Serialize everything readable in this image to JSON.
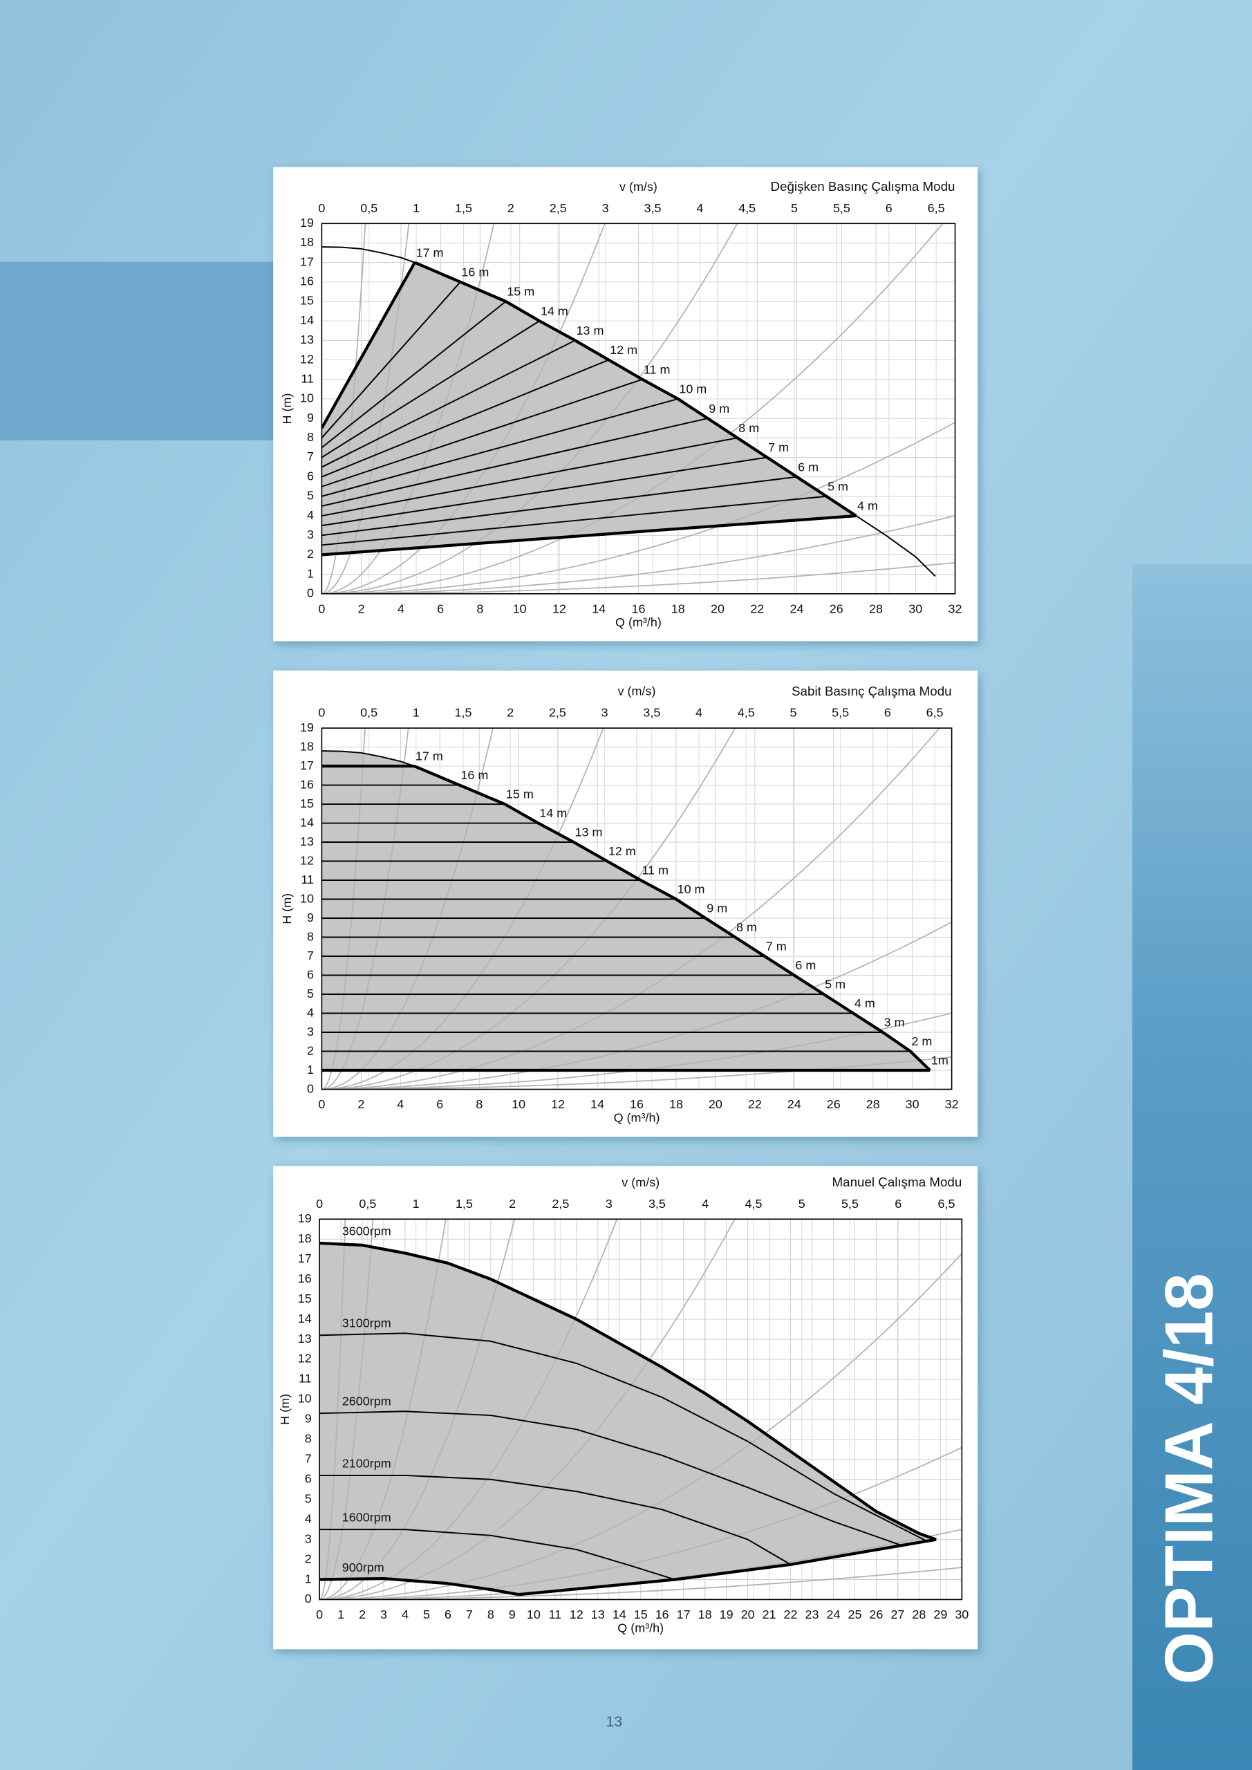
{
  "sidebar_title": "OPTIMA 4/18",
  "page_number": "13",
  "chart_data": [
    {
      "type": "line",
      "title": "Değişken Basınç Çalışma Modu",
      "x_label": "Q (m³/h)",
      "x2_label": "v (m/s)",
      "y_label": "H (m)",
      "xlim": [
        0,
        32
      ],
      "xticks": [
        0,
        2,
        4,
        6,
        8,
        10,
        12,
        14,
        16,
        18,
        20,
        22,
        24,
        26,
        28,
        30,
        32
      ],
      "x2lim": [
        0,
        6.7
      ],
      "x2ticks": [
        0,
        {
          "value": 0.5,
          "label": "0,5"
        },
        1,
        {
          "value": 1.5,
          "label": "1,5"
        },
        2,
        {
          "value": 2.5,
          "label": "2,5"
        },
        3,
        {
          "value": 3.5,
          "label": "3,5"
        },
        4,
        {
          "value": 4.5,
          "label": "4,5"
        },
        5,
        {
          "value": 5.5,
          "label": "5,5"
        },
        6,
        {
          "value": 6.5,
          "label": "6,5"
        }
      ],
      "ylim": [
        0,
        19
      ],
      "yticks": [
        0,
        1,
        2,
        3,
        4,
        5,
        6,
        7,
        8,
        9,
        10,
        11,
        12,
        13,
        14,
        15,
        16,
        17,
        18,
        19
      ],
      "grid": true,
      "series_label_position": "end",
      "system_curves": {
        "color": "#b4b4b4",
        "k": [
          3.93,
          0.981,
          0.251,
          0.0929,
          0.0431,
          0.0193,
          0.00859,
          0.00391,
          0.00156
        ]
      },
      "area": {
        "color": "#c6c6c6",
        "x": [
          0,
          4.7,
          7,
          9.3,
          11,
          12.8,
          14.5,
          16.2,
          18,
          19.5,
          21,
          22.5,
          24,
          25.5,
          27,
          0
        ],
        "y": [
          8.5,
          17,
          16,
          15,
          14,
          13,
          12,
          11,
          10,
          9,
          8,
          7,
          6,
          5,
          4,
          2
        ]
      },
      "series": [
        {
          "color": "#000000",
          "width": 1.2,
          "x": [
            0,
            1,
            2,
            3,
            4,
            4.7,
            7,
            9.3,
            11,
            12.8,
            14.5,
            16.2,
            18,
            19.5,
            21,
            22.5,
            24,
            25.5,
            27,
            28.5,
            30,
            31
          ],
          "y": [
            17.8,
            17.78,
            17.7,
            17.5,
            17.25,
            17,
            16,
            15,
            14,
            13,
            12,
            11,
            10,
            9,
            8,
            7,
            6,
            5,
            4,
            3,
            1.9,
            0.9
          ]
        },
        {
          "color": "#000000",
          "width": 2.6,
          "x": [
            4.7,
            7,
            9.3,
            11,
            12.8,
            14.5,
            16.2,
            18,
            19.5,
            21,
            22.5,
            24,
            25.5,
            27
          ],
          "y": [
            17,
            16,
            15,
            14,
            13,
            12,
            11,
            10,
            9,
            8,
            7,
            6,
            5,
            4
          ]
        },
        {
          "name": "17 m",
          "color": "#000000",
          "width": 2.6,
          "x": [
            0,
            4.7
          ],
          "y": [
            8.5,
            17
          ]
        },
        {
          "name": "16 m",
          "color": "#000000",
          "width": 1.2,
          "x": [
            0,
            7
          ],
          "y": [
            8,
            16
          ]
        },
        {
          "name": "15 m",
          "color": "#000000",
          "width": 1.2,
          "x": [
            0,
            9.3
          ],
          "y": [
            7.5,
            15
          ]
        },
        {
          "name": "14 m",
          "color": "#000000",
          "width": 1.2,
          "x": [
            0,
            11
          ],
          "y": [
            7,
            14
          ]
        },
        {
          "name": "13 m",
          "color": "#000000",
          "width": 1.2,
          "x": [
            0,
            12.8
          ],
          "y": [
            6.5,
            13
          ]
        },
        {
          "name": "12 m",
          "color": "#000000",
          "width": 1.2,
          "x": [
            0,
            14.5
          ],
          "y": [
            6,
            12
          ]
        },
        {
          "name": "11 m",
          "color": "#000000",
          "width": 1.2,
          "x": [
            0,
            16.2
          ],
          "y": [
            5.5,
            11
          ]
        },
        {
          "name": "10 m",
          "color": "#000000",
          "width": 1.2,
          "x": [
            0,
            18
          ],
          "y": [
            5,
            10
          ]
        },
        {
          "name": "9 m",
          "color": "#000000",
          "width": 1.2,
          "x": [
            0,
            19.5
          ],
          "y": [
            4.5,
            9
          ]
        },
        {
          "name": "8 m",
          "color": "#000000",
          "width": 1.2,
          "x": [
            0,
            21
          ],
          "y": [
            4,
            8
          ]
        },
        {
          "name": "7 m",
          "color": "#000000",
          "width": 1.2,
          "x": [
            0,
            22.5
          ],
          "y": [
            3.5,
            7
          ]
        },
        {
          "name": "6 m",
          "color": "#000000",
          "width": 1.2,
          "x": [
            0,
            24
          ],
          "y": [
            3,
            6
          ]
        },
        {
          "name": "5 m",
          "color": "#000000",
          "width": 1.2,
          "x": [
            0,
            25.5
          ],
          "y": [
            2.5,
            5
          ]
        },
        {
          "name": "4 m",
          "color": "#000000",
          "width": 2.6,
          "x": [
            0,
            27
          ],
          "y": [
            2,
            4
          ]
        }
      ]
    },
    {
      "type": "line",
      "title": "Sabit Basınç Çalışma Modu",
      "x_label": "Q (m³/h)",
      "x2_label": "v (m/s)",
      "y_label": "H (m)",
      "xlim": [
        0,
        32
      ],
      "xticks": [
        0,
        2,
        4,
        6,
        8,
        10,
        12,
        14,
        16,
        18,
        20,
        22,
        24,
        26,
        28,
        30,
        32
      ],
      "x2lim": [
        0,
        6.68
      ],
      "x2ticks": [
        0,
        {
          "value": 0.5,
          "label": "0,5"
        },
        1,
        {
          "value": 1.5,
          "label": "1,5"
        },
        2,
        {
          "value": 2.5,
          "label": "2,5"
        },
        3,
        {
          "value": 3.5,
          "label": "3,5"
        },
        4,
        {
          "value": 4.5,
          "label": "4,5"
        },
        5,
        {
          "value": 5.5,
          "label": "5,5"
        },
        6,
        {
          "value": 6.5,
          "label": "6,5"
        }
      ],
      "ylim": [
        0,
        19
      ],
      "yticks": [
        0,
        1,
        2,
        3,
        4,
        5,
        6,
        7,
        8,
        9,
        10,
        11,
        12,
        13,
        14,
        15,
        16,
        17,
        18,
        19
      ],
      "grid": true,
      "series_label_position": "end",
      "system_curves": {
        "color": "#b4b4b4",
        "k": [
          3.93,
          0.981,
          0.251,
          0.0929,
          0.0431,
          0.0193,
          0.00859,
          0.00391,
          0.00166
        ]
      },
      "area": {
        "color": "#c6c6c6",
        "x": [
          0,
          1,
          2,
          3,
          4,
          4.7,
          7,
          9.3,
          11,
          12.8,
          14.5,
          16.2,
          18,
          19.5,
          21,
          22.5,
          24,
          25.5,
          27,
          28.5,
          29.9,
          30.9,
          0
        ],
        "y": [
          17.8,
          17.78,
          17.7,
          17.5,
          17.25,
          17,
          16,
          15,
          14,
          13,
          12,
          11,
          10,
          9,
          8,
          7,
          6,
          5,
          4,
          3,
          2,
          1,
          1
        ]
      },
      "series": [
        {
          "color": "#000000",
          "width": 1.2,
          "x": [
            0,
            1,
            2,
            3,
            4,
            4.7
          ],
          "y": [
            17.8,
            17.78,
            17.7,
            17.5,
            17.25,
            17
          ]
        },
        {
          "color": "#000000",
          "width": 2.6,
          "x": [
            4.7,
            7,
            9.3,
            11,
            12.8,
            14.5,
            16.2,
            18,
            19.5,
            21,
            22.5,
            24,
            25.5,
            27,
            28.5,
            29.9,
            30.9
          ],
          "y": [
            17,
            16,
            15,
            14,
            13,
            12,
            11,
            10,
            9,
            8,
            7,
            6,
            5,
            4,
            3,
            2,
            1
          ]
        },
        {
          "name": "17 m",
          "color": "#000000",
          "width": 2.6,
          "x": [
            0,
            4.7
          ],
          "y": [
            17,
            17
          ]
        },
        {
          "name": "16 m",
          "color": "#000000",
          "width": 1.2,
          "x": [
            0,
            7
          ],
          "y": [
            16,
            16
          ]
        },
        {
          "name": "15 m",
          "color": "#000000",
          "width": 1.2,
          "x": [
            0,
            9.3
          ],
          "y": [
            15,
            15
          ]
        },
        {
          "name": "14 m",
          "color": "#000000",
          "width": 1.2,
          "x": [
            0,
            11
          ],
          "y": [
            14,
            14
          ]
        },
        {
          "name": "13 m",
          "color": "#000000",
          "width": 1.2,
          "x": [
            0,
            12.8
          ],
          "y": [
            13,
            13
          ]
        },
        {
          "name": "12 m",
          "color": "#000000",
          "width": 1.2,
          "x": [
            0,
            14.5
          ],
          "y": [
            12,
            12
          ]
        },
        {
          "name": "11 m",
          "color": "#000000",
          "width": 1.2,
          "x": [
            0,
            16.2
          ],
          "y": [
            11,
            11
          ]
        },
        {
          "name": "10 m",
          "color": "#000000",
          "width": 1.2,
          "x": [
            0,
            18
          ],
          "y": [
            10,
            10
          ]
        },
        {
          "name": "9 m",
          "color": "#000000",
          "width": 1.2,
          "x": [
            0,
            19.5
          ],
          "y": [
            9,
            9
          ]
        },
        {
          "name": "8 m",
          "color": "#000000",
          "width": 1.2,
          "x": [
            0,
            21
          ],
          "y": [
            8,
            8
          ]
        },
        {
          "name": "7 m",
          "color": "#000000",
          "width": 1.2,
          "x": [
            0,
            22.5
          ],
          "y": [
            7,
            7
          ]
        },
        {
          "name": "6 m",
          "color": "#000000",
          "width": 1.2,
          "x": [
            0,
            24
          ],
          "y": [
            6,
            6
          ]
        },
        {
          "name": "5 m",
          "color": "#000000",
          "width": 1.2,
          "x": [
            0,
            25.5
          ],
          "y": [
            5,
            5
          ]
        },
        {
          "name": "4 m",
          "color": "#000000",
          "width": 1.2,
          "x": [
            0,
            27
          ],
          "y": [
            4,
            4
          ]
        },
        {
          "name": "3 m",
          "color": "#000000",
          "width": 1.2,
          "x": [
            0,
            28.5
          ],
          "y": [
            3,
            3
          ]
        },
        {
          "name": "2 m",
          "color": "#000000",
          "width": 1.2,
          "x": [
            0,
            29.9
          ],
          "y": [
            2,
            2
          ]
        },
        {
          "name": "1m",
          "color": "#000000",
          "width": 2.6,
          "x": [
            0,
            30.9
          ],
          "y": [
            1,
            1
          ]
        }
      ]
    },
    {
      "type": "line",
      "title": "Manuel Çalışma Modu",
      "x_label": "Q (m³/h)",
      "x2_label": "v (m/s)",
      "y_label": "H (m)",
      "xlim": [
        0,
        30
      ],
      "xticks": [
        0,
        1,
        2,
        3,
        4,
        5,
        6,
        7,
        8,
        9,
        10,
        11,
        12,
        13,
        14,
        15,
        16,
        17,
        18,
        19,
        20,
        21,
        22,
        23,
        24,
        25,
        26,
        27,
        28,
        29,
        30
      ],
      "x2lim": [
        0,
        6.66
      ],
      "x2ticks": [
        0,
        {
          "value": 0.5,
          "label": "0,5"
        },
        1,
        {
          "value": 1.5,
          "label": "1,5"
        },
        2,
        {
          "value": 2.5,
          "label": "2,5"
        },
        3,
        {
          "value": 3.5,
          "label": "3,5"
        },
        4,
        {
          "value": 4.5,
          "label": "4,5"
        },
        5,
        {
          "value": 5.5,
          "label": "5,5"
        },
        6,
        {
          "value": 6.5,
          "label": "6,5"
        }
      ],
      "ylim": [
        0,
        19
      ],
      "yticks": [
        0,
        1,
        2,
        3,
        4,
        5,
        6,
        7,
        8,
        9,
        10,
        11,
        12,
        13,
        14,
        15,
        16,
        17,
        18,
        19
      ],
      "grid": true,
      "series_label_position": "start",
      "system_curves": {
        "color": "#b4b4b4",
        "k": [
          13.2,
          3.04,
          0.546,
          0.229,
          0.0984,
          0.0505,
          0.0192,
          0.00844,
          0.00389,
          0.00178
        ]
      },
      "area": {
        "color": "#c6c6c6",
        "x": [
          0,
          2,
          4,
          6,
          8,
          10,
          12,
          14,
          16,
          18,
          20,
          22,
          24,
          26,
          28,
          28.8,
          22,
          16.6,
          9.3,
          8,
          6,
          3,
          0
        ],
        "y": [
          17.8,
          17.7,
          17.3,
          16.8,
          16,
          15,
          14,
          12.8,
          11.6,
          10.3,
          8.9,
          7.4,
          5.9,
          4.4,
          3.3,
          3,
          1.75,
          1,
          0.25,
          0.5,
          0.8,
          1.05,
          1
        ]
      },
      "series": [
        {
          "name": "3600rpm",
          "color": "#000000",
          "width": 2.6,
          "x": [
            0,
            2,
            4,
            6,
            8,
            10,
            12,
            14,
            16,
            18,
            20,
            22,
            24,
            26,
            28,
            28.8
          ],
          "y": [
            17.8,
            17.7,
            17.3,
            16.8,
            16,
            15,
            14,
            12.8,
            11.6,
            10.3,
            8.9,
            7.4,
            5.9,
            4.4,
            3.3,
            3
          ]
        },
        {
          "name": "3100rpm",
          "color": "#000000",
          "width": 1.2,
          "x": [
            0,
            4,
            8,
            12,
            16,
            20,
            24,
            28.3
          ],
          "y": [
            13.2,
            13.3,
            12.9,
            11.8,
            10.1,
            7.9,
            5.3,
            2.95
          ]
        },
        {
          "name": "2600rpm",
          "color": "#000000",
          "width": 1.2,
          "x": [
            0,
            4,
            8,
            12,
            16,
            20,
            24,
            27.2
          ],
          "y": [
            9.3,
            9.4,
            9.2,
            8.5,
            7.2,
            5.6,
            3.9,
            2.7
          ]
        },
        {
          "name": "2100rpm",
          "color": "#000000",
          "width": 1.2,
          "x": [
            0,
            4,
            8,
            12,
            16,
            20,
            22
          ],
          "y": [
            6.2,
            6.2,
            6,
            5.4,
            4.5,
            3,
            1.75
          ]
        },
        {
          "name": "1600rpm",
          "color": "#000000",
          "width": 1.2,
          "x": [
            0,
            4,
            8,
            12,
            14.5,
            16.6
          ],
          "y": [
            3.5,
            3.5,
            3.2,
            2.5,
            1.7,
            1
          ]
        },
        {
          "name": "900rpm",
          "color": "#000000",
          "width": 2.6,
          "x": [
            0,
            3,
            6,
            8,
            9.3
          ],
          "y": [
            1,
            1.05,
            0.8,
            0.5,
            0.25
          ]
        },
        {
          "color": "#000000",
          "width": 2.6,
          "x": [
            9.3,
            16.6,
            22,
            28.8
          ],
          "y": [
            0.25,
            1,
            1.75,
            3
          ]
        }
      ]
    }
  ]
}
